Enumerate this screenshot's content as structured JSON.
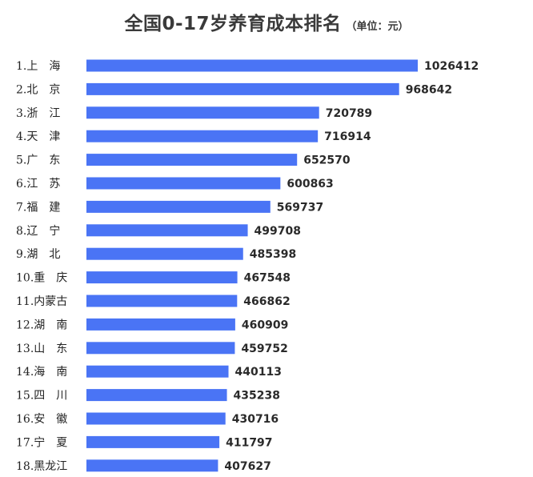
{
  "title": "全国0-17岁养育成本排名",
  "unit": "（单位：元）",
  "chart_data": {
    "type": "bar",
    "orientation": "horizontal",
    "title": "全国0-17岁养育成本排名",
    "subtitle": "（单位：元）",
    "categories": [
      "1.上　海",
      "2.北　京",
      "3.浙　江",
      "4.天　津",
      "5.广　东",
      "6.江　苏",
      "7.福　建",
      "8.辽　宁",
      "9.湖　北",
      "10.重　庆",
      "11.内蒙古",
      "12.湖　南",
      "13.山　东",
      "14.海　南",
      "15.四　川",
      "16.安　徽",
      "17.宁　夏",
      "18.黑龙江"
    ],
    "values": [
      1026412,
      968642,
      720789,
      716914,
      652570,
      600863,
      569737,
      499708,
      485398,
      467548,
      466862,
      460909,
      459752,
      440113,
      435238,
      430716,
      411797,
      407627
    ],
    "value_labels": [
      "1026412",
      "968642",
      "720789",
      "716914",
      "652570",
      "600863",
      "569737",
      "499708",
      "485398",
      "467548",
      "466862",
      "460909",
      "459752",
      "440113",
      "435238",
      "430716",
      "411797",
      "407627"
    ],
    "xlim": [
      0,
      1026412
    ],
    "grid": false,
    "legend": "none",
    "bar_color": "#4a74f5"
  }
}
